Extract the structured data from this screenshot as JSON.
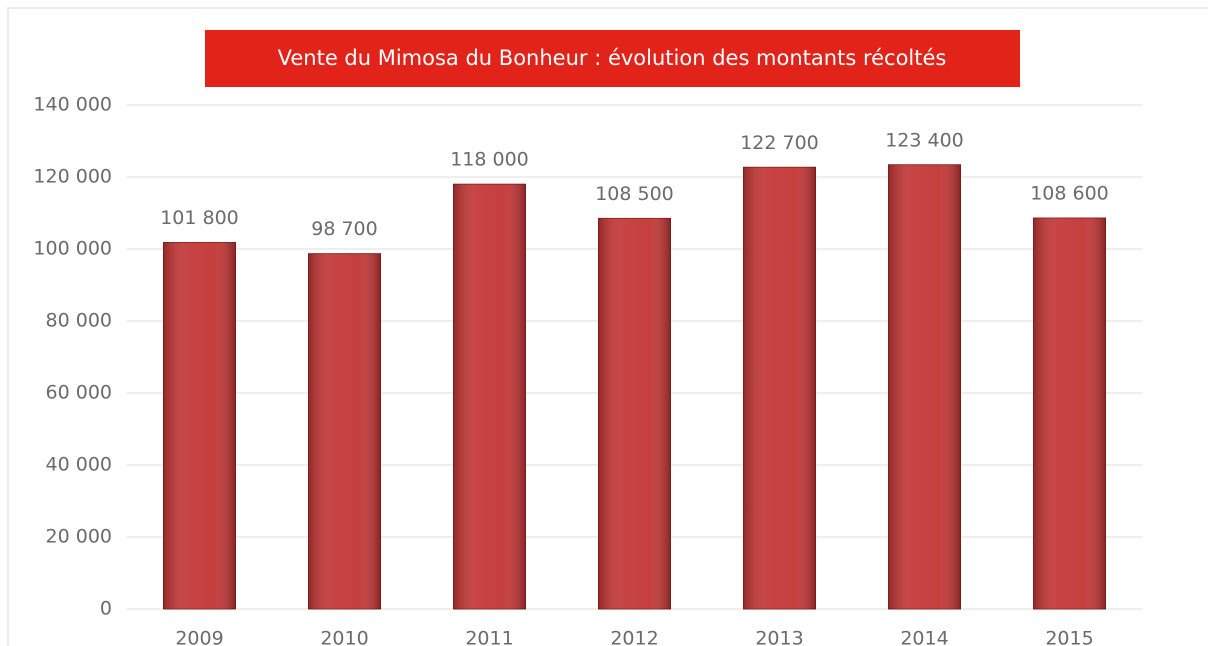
{
  "chart_data": {
    "type": "bar",
    "title": "Vente du Mimosa du Bonheur : évolution des montants récoltés",
    "categories": [
      "2009",
      "2010",
      "2011",
      "2012",
      "2013",
      "2014",
      "2015"
    ],
    "values": [
      101800,
      98700,
      118000,
      108500,
      122700,
      123400,
      108600
    ],
    "value_labels": [
      "101 800",
      "98 700",
      "118 000",
      "108 500",
      "122 700",
      "123 400",
      "108 600"
    ],
    "color": "#c33535",
    "ylim": [
      0,
      140000
    ],
    "yticks": [
      0,
      {
        "value": 20000,
        "label": "20 000"
      },
      {
        "value": 40000,
        "label": "40 000"
      },
      {
        "value": 60000,
        "label": "60 000"
      },
      {
        "value": 80000,
        "label": "80 000"
      },
      {
        "value": 100000,
        "label": "100 000"
      },
      {
        "value": 120000,
        "label": "120 000"
      },
      {
        "value": 140000,
        "label": "140 000"
      }
    ],
    "grid": true
  }
}
